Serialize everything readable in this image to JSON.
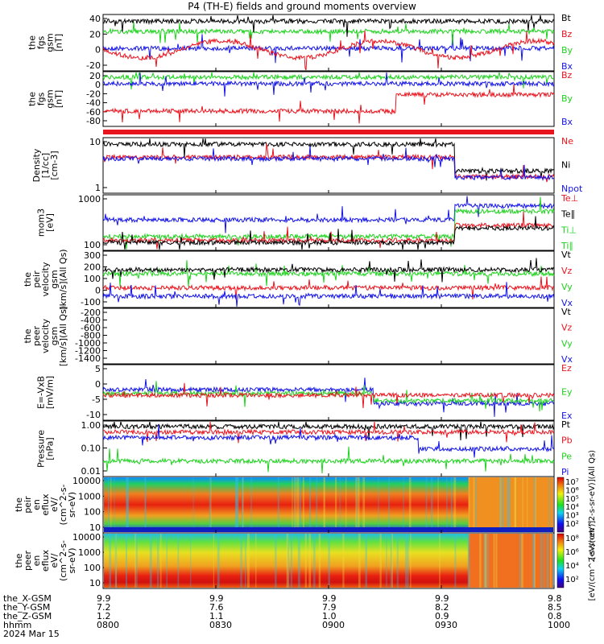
{
  "title": "P4 (TH-E) fields and ground moments overview",
  "colors": {
    "black": "#000000",
    "red": "#e8141e",
    "green": "#1ed21e",
    "blue": "#1414e6",
    "purple": "#9020c8"
  },
  "panels": [
    {
      "ylabel": [
        "the",
        "fgs",
        "gsm",
        "[nT]"
      ],
      "ticks": [
        "40",
        "20",
        "0",
        "-20"
      ],
      "ylim": [
        -35,
        45
      ],
      "legend": [
        {
          "text": "Bt",
          "color": "black"
        },
        {
          "text": "Bz",
          "color": "red"
        },
        {
          "text": "By",
          "color": "green"
        },
        {
          "text": "Bx",
          "color": "blue"
        }
      ]
    },
    {
      "ylabel": [
        "the",
        "fgs",
        "gsm",
        "[nT]"
      ],
      "ticks": [
        "20",
        "0",
        "-20",
        "-40",
        "-60",
        "-80"
      ],
      "ylim": [
        -95,
        28
      ],
      "legend": [
        {
          "text": "Bz",
          "color": "red"
        },
        {
          "text": "By",
          "color": "green"
        },
        {
          "text": "Bx",
          "color": "blue"
        }
      ]
    },
    {
      "ylabel": [
        "Density",
        "[1/cc]",
        "[cm-3]"
      ],
      "ticks": [
        "10",
        "1"
      ],
      "ylim": [
        0.3,
        16
      ],
      "log": true,
      "legend": [
        {
          "text": "Ne",
          "color": "red"
        },
        {
          "text": "Ni",
          "color": "black"
        },
        {
          "text": "Npot",
          "color": "blue"
        }
      ]
    },
    {
      "ylabel": [
        "mom3",
        "[eV]"
      ],
      "ticks": [
        "1000",
        "100"
      ],
      "ylim": [
        40,
        3000
      ],
      "log": true,
      "legend": [
        {
          "text": "Te⊥",
          "color": "red"
        },
        {
          "text": "Te∥",
          "color": "black"
        },
        {
          "text": "Ti⊥",
          "color": "green"
        },
        {
          "text": "Ti∥",
          "color": "green"
        }
      ]
    },
    {
      "ylabel": [
        "the",
        "peir",
        "velocity",
        "gsm",
        "[km/s](All Qs)"
      ],
      "ticks": [
        "300",
        "200",
        "100",
        "0",
        "-100"
      ],
      "ylim": [
        -170,
        320
      ],
      "legend": [
        {
          "text": "Vt",
          "color": "black"
        },
        {
          "text": "Vz",
          "color": "red"
        },
        {
          "text": "Vy",
          "color": "green"
        },
        {
          "text": "Vx",
          "color": "blue"
        }
      ]
    },
    {
      "ylabel": [
        "the",
        "peer",
        "velocity",
        "gsm",
        "[km/s](All Qs)"
      ],
      "ticks": [
        "-200",
        "-400",
        "-600",
        "-800",
        "-1000",
        "-1200",
        "-1400"
      ],
      "ylim": [
        -1550,
        -120
      ],
      "legend": [
        {
          "text": "Vt",
          "color": "black"
        },
        {
          "text": "Vz",
          "color": "red"
        },
        {
          "text": "Vy",
          "color": "green"
        },
        {
          "text": "Vx",
          "color": "blue"
        }
      ]
    },
    {
      "ylabel": [
        "E=-VxB",
        "[mV/m]"
      ],
      "ticks": [
        "5",
        "0",
        "-5",
        "-10"
      ],
      "ylim": [
        -11,
        10
      ],
      "legend": [
        {
          "text": "Ez",
          "color": "red"
        },
        {
          "text": "Ey",
          "color": "green"
        },
        {
          "text": "Ex",
          "color": "blue"
        }
      ]
    },
    {
      "ylabel": [
        "Pressure",
        "[nPa]"
      ],
      "ticks": [
        "1.00",
        "0.10",
        "0.01"
      ],
      "ylim": [
        0.006,
        1.6
      ],
      "log": true,
      "legend": [
        {
          "text": "Pt",
          "color": "black"
        },
        {
          "text": "Pb",
          "color": "red"
        },
        {
          "text": "Pe",
          "color": "green"
        },
        {
          "text": "Pi",
          "color": "blue"
        }
      ]
    },
    {
      "ylabel": [
        "the",
        "peir",
        "en",
        "eflux",
        "eV/",
        "(cm^2-s-",
        "sr-eV)"
      ],
      "ticks": [
        "10000",
        "1000",
        "100",
        "10"
      ],
      "ylim": [
        5,
        20000
      ],
      "log": true,
      "spectro": true,
      "cbar": {
        "ticks": [
          "10⁷",
          "10⁶",
          "10⁵",
          "10⁴",
          "10³",
          "10²"
        ],
        "label": "[eV/(cm^2-s-sr-eV)](All Qs)"
      }
    },
    {
      "ylabel": [
        "the",
        "peer",
        "en",
        "eflux",
        "eV/",
        "(cm^2-s-",
        "sr-eV)"
      ],
      "ticks": [
        "10000",
        "1000",
        "100",
        "10"
      ],
      "ylim": [
        5,
        20000
      ],
      "log": true,
      "spectro": true,
      "cbar": {
        "ticks": [
          "10⁸",
          "10⁶",
          "10⁴",
          "10²"
        ],
        "label": "[eV/(cm^2-s-sr-eV)]"
      }
    }
  ],
  "xaxis": {
    "row_labels": [
      "the_X-GSM",
      "the_Y-GSM",
      "the_Z-GSM",
      "hhmm",
      "2024 Mar 15"
    ],
    "ticks": [
      {
        "x": "9.9",
        "y": "7.2",
        "z": "1.2",
        "t": "0800"
      },
      {
        "x": "9.9",
        "y": "7.6",
        "z": "1.1",
        "t": "0830"
      },
      {
        "x": "9.9",
        "y": "7.9",
        "z": "1.0",
        "t": "0900"
      },
      {
        "x": "9.9",
        "y": "8.2",
        "z": "0.9",
        "t": "0930"
      },
      {
        "x": "9.8",
        "y": "8.5",
        "z": "0.8",
        "t": "1000"
      }
    ]
  },
  "chart_data": [
    {
      "type": "line",
      "series": [
        {
          "name": "Bt"
        },
        {
          "name": "Bz"
        },
        {
          "name": "By"
        },
        {
          "name": "Bx"
        }
      ],
      "ylim": [
        -35,
        45
      ],
      "xlim": [
        "0800",
        "1000"
      ]
    },
    {
      "type": "line",
      "series": [
        {
          "name": "Bz"
        },
        {
          "name": "By"
        },
        {
          "name": "Bx"
        }
      ],
      "ylim": [
        -95,
        28
      ]
    },
    {
      "type": "line",
      "series": [
        {
          "name": "Ne"
        },
        {
          "name": "Ni"
        },
        {
          "name": "Npot"
        }
      ],
      "log": true
    },
    {
      "type": "line",
      "series": [
        {
          "name": "Te⊥"
        },
        {
          "name": "Te∥"
        },
        {
          "name": "Ti⊥"
        },
        {
          "name": "Ti∥"
        }
      ],
      "log": true
    },
    {
      "type": "line",
      "series": [
        {
          "name": "Vt"
        },
        {
          "name": "Vz"
        },
        {
          "name": "Vy"
        },
        {
          "name": "Vx"
        }
      ]
    },
    {
      "type": "line",
      "series": []
    },
    {
      "type": "line",
      "series": [
        {
          "name": "Ez"
        },
        {
          "name": "Ey"
        },
        {
          "name": "Ex"
        }
      ]
    },
    {
      "type": "line",
      "series": [
        {
          "name": "Pt"
        },
        {
          "name": "Pb"
        },
        {
          "name": "Pe"
        },
        {
          "name": "Pi"
        }
      ],
      "log": true
    },
    {
      "type": "heatmap",
      "log": true
    },
    {
      "type": "heatmap",
      "log": true
    }
  ]
}
